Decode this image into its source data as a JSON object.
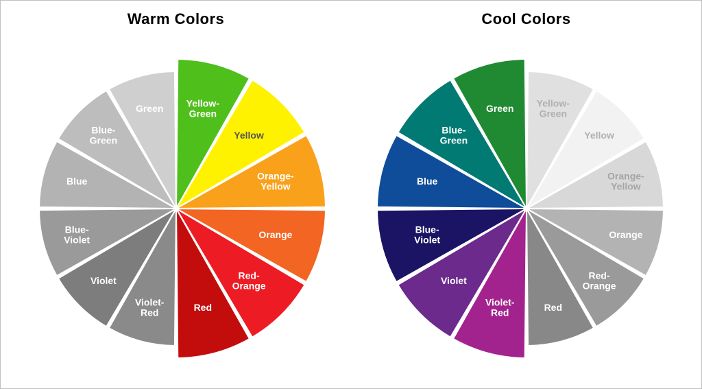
{
  "background_color": "#ffffff",
  "border_color": "#bfbfbf",
  "title_fontsize": 22,
  "title_font_weight": 900,
  "label_fontsize": 14,
  "label_font_weight": 700,
  "segment_gap_deg": 1.2,
  "wheel_radius_inner": 200,
  "wheel_radius_highlight": 218,
  "label_radius": 150,
  "base_segments": [
    {
      "key": "yellowgreen",
      "label": "Yellow-\nGreen",
      "start": -90,
      "end": -60
    },
    {
      "key": "yellow",
      "label": "Yellow",
      "start": -60,
      "end": -30
    },
    {
      "key": "orangeyellow",
      "label": "Orange-\nYellow",
      "start": -30,
      "end": 0
    },
    {
      "key": "orange",
      "label": "Orange",
      "start": 0,
      "end": 30
    },
    {
      "key": "redorange",
      "label": "Red-\nOrange",
      "start": 30,
      "end": 60
    },
    {
      "key": "red",
      "label": "Red",
      "start": 60,
      "end": 90
    },
    {
      "key": "violetred",
      "label": "Violet-\nRed",
      "start": 90,
      "end": 120
    },
    {
      "key": "violet",
      "label": "Violet",
      "start": 120,
      "end": 150
    },
    {
      "key": "blueviolet",
      "label": "Blue-\nViolet",
      "start": 150,
      "end": 180
    },
    {
      "key": "blue",
      "label": "Blue",
      "start": 180,
      "end": 210
    },
    {
      "key": "bluegreen",
      "label": "Blue-\nGreen",
      "start": 210,
      "end": 240
    },
    {
      "key": "green",
      "label": "Green",
      "start": 240,
      "end": 270
    }
  ],
  "warm": {
    "title": "Warm Colors",
    "colors": {
      "yellowgreen": {
        "fill": "#4fbf1b",
        "text": "#ffffff",
        "highlight": true
      },
      "yellow": {
        "fill": "#fff200",
        "text": "#555555",
        "highlight": true
      },
      "orangeyellow": {
        "fill": "#f9a11b",
        "text": "#ffffff",
        "highlight": true
      },
      "orange": {
        "fill": "#f26522",
        "text": "#ffffff",
        "highlight": true
      },
      "redorange": {
        "fill": "#ed1c24",
        "text": "#ffffff",
        "highlight": true
      },
      "red": {
        "fill": "#c30d0d",
        "text": "#ffffff",
        "highlight": true
      },
      "violetred": {
        "fill": "#8a8a8a",
        "text": "#ffffff",
        "highlight": false
      },
      "violet": {
        "fill": "#7d7d7d",
        "text": "#ffffff",
        "highlight": false
      },
      "blueviolet": {
        "fill": "#9a9a9a",
        "text": "#ffffff",
        "highlight": false
      },
      "blue": {
        "fill": "#b3b3b3",
        "text": "#ffffff",
        "highlight": false
      },
      "bluegreen": {
        "fill": "#bdbdbd",
        "text": "#ffffff",
        "highlight": false
      },
      "green": {
        "fill": "#cfcfcf",
        "text": "#ffffff",
        "highlight": false
      }
    },
    "label_overrides": {}
  },
  "cool": {
    "title": "Cool Colors",
    "colors": {
      "yellowgreen": {
        "fill": "#e0e0e0",
        "text": "#b0b0b0",
        "highlight": false
      },
      "yellow": {
        "fill": "#f2f2f2",
        "text": "#b0b0b0",
        "highlight": false
      },
      "orangeyellow": {
        "fill": "#d8d8d8",
        "text": "#a5a5a5",
        "highlight": false
      },
      "orange": {
        "fill": "#b3b3b3",
        "text": "#ffffff",
        "highlight": false
      },
      "redorange": {
        "fill": "#9a9a9a",
        "text": "#ffffff",
        "highlight": false
      },
      "red": {
        "fill": "#888888",
        "text": "#ffffff",
        "highlight": false
      },
      "violetred": {
        "fill": "#a3238e",
        "text": "#ffffff",
        "highlight": true
      },
      "violet": {
        "fill": "#6b2a8c",
        "text": "#ffffff",
        "highlight": true
      },
      "blueviolet": {
        "fill": "#1b1464",
        "text": "#ffffff",
        "highlight": true
      },
      "blue": {
        "fill": "#0f4c9a",
        "text": "#ffffff",
        "highlight": true
      },
      "bluegreen": {
        "fill": "#007a73",
        "text": "#ffffff",
        "highlight": true
      },
      "green": {
        "fill": "#1f8a32",
        "text": "#ffffff",
        "highlight": true
      }
    },
    "label_overrides": {
      "redorange": "Red-\nOrange"
    }
  }
}
